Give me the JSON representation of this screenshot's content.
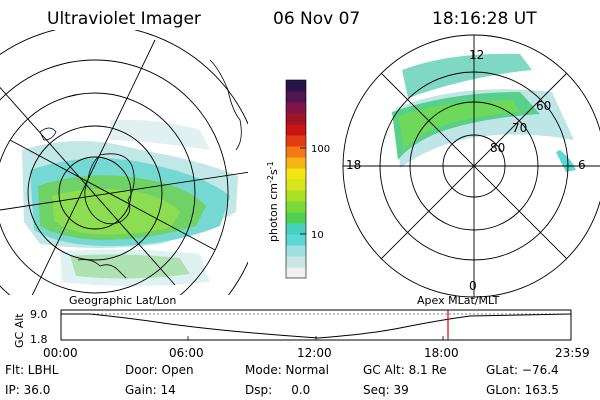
{
  "header": {
    "instrument": "Ultraviolet Imager",
    "date": "06 Nov 07",
    "time": "18:16:28 UT"
  },
  "colorbar": {
    "label": "photon cm",
    "label_sup1": "-2",
    "label_s": "s",
    "label_sup2": "-1",
    "tick_100": "100",
    "tick_10": "10",
    "colors": [
      "#f0f0f0",
      "#c8e6e6",
      "#9ee0e0",
      "#5cd7d7",
      "#46d2be",
      "#50d050",
      "#7ada3c",
      "#a8e028",
      "#d7e41e",
      "#f0e614",
      "#f4b414",
      "#f47814",
      "#e43c14",
      "#c81414",
      "#a01428",
      "#801446",
      "#501450",
      "#281446"
    ]
  },
  "right_map": {
    "mlt_labels": {
      "top": "12",
      "left": "18",
      "right": "6",
      "bottom": "0"
    },
    "lat_labels": [
      "60",
      "70",
      "80"
    ]
  },
  "map_captions": {
    "left": "Geographic Lat/Lon",
    "right": "Apex MLat/MLT"
  },
  "orbit_plot": {
    "ylabel": "GC Alt",
    "yticks": [
      "9.0",
      "1.8"
    ],
    "xticks": [
      "00:00",
      "06:00",
      "12:00",
      "18:00",
      "23:59"
    ],
    "marker_time": "18:16"
  },
  "info": {
    "row1": {
      "filter": "Flt: LBHL",
      "door": "Door: Open",
      "mode": "Mode: Normal",
      "gc_alt": "GC Alt: 8.1 Re",
      "glat": "GLat: −76.4"
    },
    "row2": {
      "ip": "IP: 36.0",
      "gain": "Gain: 14",
      "dsp": "Dsp:     0.0",
      "seq": "Seq: 39",
      "glon": "GLon: 163.5"
    }
  }
}
